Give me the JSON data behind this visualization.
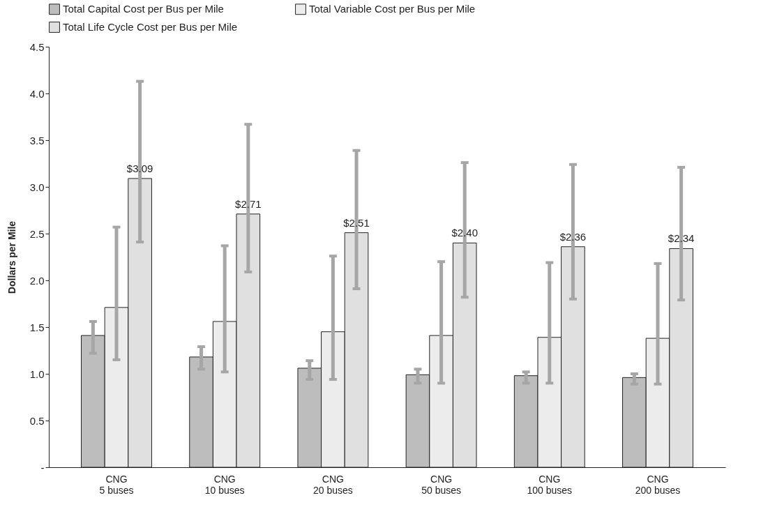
{
  "chart_data": {
    "type": "bar",
    "ylabel": "Dollars per Mile",
    "categories": [
      "CNG\n5 buses",
      "CNG\n10 buses",
      "CNG\n20 buses",
      "CNG\n50 buses",
      "CNG\n100 buses",
      "CNG\n200 buses"
    ],
    "series": [
      {
        "name": "Total Capital Cost per Bus per Mile",
        "color": "#bdbdbd",
        "values": [
          1.41,
          1.18,
          1.06,
          0.99,
          0.98,
          0.96
        ],
        "errors": [
          [
            1.22,
            1.56
          ],
          [
            1.05,
            1.29
          ],
          [
            0.94,
            1.14
          ],
          [
            0.9,
            1.05
          ],
          [
            0.9,
            1.02
          ],
          [
            0.89,
            1.0
          ]
        ]
      },
      {
        "name": "Total Variable Cost per Bus per Mile",
        "color": "#ececec",
        "values": [
          1.71,
          1.56,
          1.45,
          1.41,
          1.39,
          1.38
        ],
        "errors": [
          [
            1.15,
            2.57
          ],
          [
            1.02,
            2.37
          ],
          [
            0.94,
            2.26
          ],
          [
            0.9,
            2.2
          ],
          [
            0.9,
            2.19
          ],
          [
            0.89,
            2.18
          ]
        ]
      },
      {
        "name": "Total Life Cycle Cost per Bus per Mile",
        "color": "#e0e0e0",
        "values": [
          3.09,
          2.71,
          2.51,
          2.4,
          2.36,
          2.34
        ],
        "errors": [
          [
            2.41,
            4.13
          ],
          [
            2.09,
            3.67
          ],
          [
            1.91,
            3.39
          ],
          [
            1.82,
            3.26
          ],
          [
            1.8,
            3.24
          ],
          [
            1.79,
            3.21
          ]
        ],
        "value_labels": [
          "$3.09",
          "$2.71",
          "$2.51",
          "$2.40",
          "$2.36",
          "$2.34"
        ]
      }
    ],
    "ylim": [
      0,
      4.5
    ],
    "yticks": [
      {
        "value": 0,
        "label": "-"
      },
      0.5,
      {
        "value": 1,
        "label": "1.0"
      },
      1.5,
      {
        "value": 2,
        "label": "2.0"
      },
      2.5,
      {
        "value": 3,
        "label": "3.0"
      },
      3.5,
      {
        "value": 4,
        "label": "4.0"
      },
      4.5
    ],
    "grid": false,
    "legend": "top"
  }
}
